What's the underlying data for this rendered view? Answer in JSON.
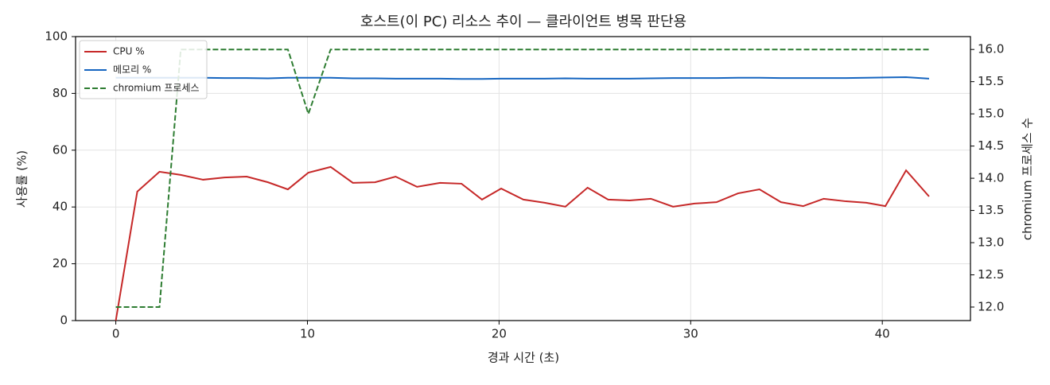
{
  "chart_data": {
    "type": "line",
    "title": "호스트(이 PC) 리소스 추이 — 클라이언트 병목 판단용",
    "x_label": "경과 시간 (초)",
    "y_label": "사용률 (%)",
    "y2_label": "chromium 프로세스 수",
    "x": [
      0,
      1.12,
      2.28,
      3.39,
      4.55,
      5.67,
      6.83,
      7.94,
      8.98,
      10.05,
      11.21,
      12.37,
      13.53,
      14.6,
      15.72,
      16.92,
      18.04,
      19.11,
      20.11,
      21.27,
      22.38,
      23.46,
      24.62,
      25.69,
      26.81,
      27.92,
      29.08,
      30.2,
      31.35,
      32.47,
      33.59,
      34.71,
      35.87,
      36.94,
      38.1,
      39.17,
      40.16,
      41.24,
      42.44
    ],
    "series": [
      {
        "name": "CPU %",
        "color": "#c62828",
        "axis": "y",
        "dash": false,
        "values": [
          0,
          45.4,
          52.4,
          51.3,
          49.6,
          50.4,
          50.7,
          48.7,
          46.2,
          52.1,
          54.1,
          48.5,
          48.7,
          50.7,
          47.1,
          48.5,
          48.2,
          42.6,
          46.5,
          42.6,
          41.5,
          40.1,
          46.8,
          42.6,
          42.3,
          42.9,
          40.1,
          41.2,
          41.7,
          44.8,
          46.2,
          41.7,
          40.3,
          42.9,
          42.0,
          41.5,
          40.3,
          52.9,
          43.7
        ]
      },
      {
        "name": "메모리 %",
        "color": "#1565c0",
        "axis": "y",
        "dash": false,
        "values": [
          85.5,
          85.5,
          85.5,
          85.5,
          85.5,
          85.4,
          85.4,
          85.3,
          85.5,
          85.5,
          85.5,
          85.3,
          85.3,
          85.2,
          85.2,
          85.2,
          85.1,
          85.1,
          85.2,
          85.2,
          85.2,
          85.3,
          85.2,
          85.2,
          85.2,
          85.3,
          85.4,
          85.4,
          85.4,
          85.5,
          85.5,
          85.4,
          85.4,
          85.4,
          85.4,
          85.5,
          85.6,
          85.7,
          85.2
        ]
      },
      {
        "name": "chromium 프로세스",
        "color": "#2e7d32",
        "axis": "y2",
        "dash": true,
        "values": [
          12,
          12,
          12,
          16,
          16,
          16,
          16,
          16,
          16,
          15,
          16,
          16,
          16,
          16,
          16,
          16,
          16,
          16,
          16,
          16,
          16,
          16,
          16,
          16,
          16,
          16,
          16,
          16,
          16,
          16,
          16,
          16,
          16,
          16,
          16,
          16,
          16,
          16,
          16
        ]
      }
    ],
    "xlim": [
      -2.1,
      44.6
    ],
    "xticks": [
      0,
      10,
      20,
      30,
      40
    ],
    "ylim": [
      0,
      100
    ],
    "yticks": [
      0,
      20,
      40,
      60,
      80,
      100
    ],
    "y2lim": [
      11.79,
      16.2
    ],
    "y2ticks": [
      {
        "value": 12,
        "label": "12.0"
      },
      12.5,
      {
        "value": 13,
        "label": "13.0"
      },
      13.5,
      {
        "value": 14,
        "label": "14.0"
      },
      14.5,
      {
        "value": 15,
        "label": "15.0"
      },
      15.5,
      {
        "value": 16,
        "label": "16.0"
      }
    ],
    "grid": true,
    "legend": "upper-left"
  }
}
